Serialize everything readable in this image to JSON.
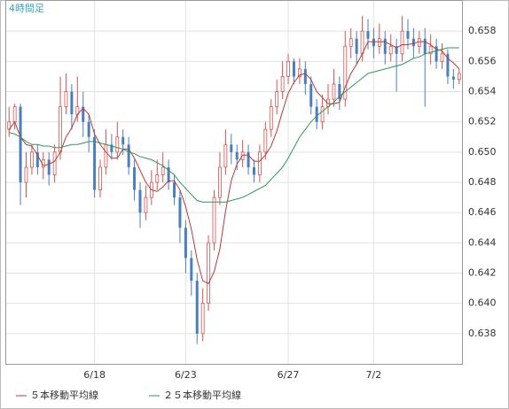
{
  "chart_data": {
    "type": "candlestick",
    "title": "4時間足",
    "categories": [
      null,
      null,
      null,
      null,
      null,
      null,
      null,
      null,
      null,
      null,
      null,
      null,
      null,
      null,
      null,
      "6/18",
      null,
      null,
      null,
      null,
      null,
      null,
      null,
      null,
      null,
      null,
      null,
      null,
      null,
      null,
      null,
      "6/23",
      null,
      null,
      null,
      null,
      null,
      null,
      null,
      null,
      null,
      null,
      null,
      null,
      null,
      null,
      null,
      null,
      null,
      "6/27",
      null,
      null,
      null,
      null,
      null,
      null,
      null,
      null,
      null,
      null,
      null,
      null,
      null,
      null,
      "7/2",
      null,
      null,
      null,
      null,
      null,
      null,
      null,
      null,
      null,
      null,
      null,
      null,
      null,
      null,
      null
    ],
    "open": [
      0.6515,
      0.652,
      0.653,
      0.648,
      0.649,
      0.65,
      0.649,
      0.6495,
      0.6485,
      0.65,
      0.653,
      0.654,
      0.6525,
      0.653,
      0.652,
      0.651,
      0.6475,
      0.649,
      0.6505,
      0.65,
      0.651,
      0.6505,
      0.649,
      0.6475,
      0.646,
      0.647,
      0.648,
      0.6485,
      0.649,
      0.648,
      0.647,
      0.645,
      0.643,
      0.6415,
      0.638,
      0.64,
      0.644,
      0.647,
      0.649,
      0.6505,
      0.65,
      0.6495,
      0.65,
      0.649,
      0.6485,
      0.65,
      0.6515,
      0.653,
      0.654,
      0.655,
      0.656,
      0.655,
      0.6555,
      0.6545,
      0.653,
      0.652,
      0.653,
      0.6535,
      0.6545,
      0.6535,
      0.657,
      0.6575,
      0.6565,
      0.658,
      0.6575,
      0.657,
      0.6575,
      0.6565,
      0.657,
      0.6565,
      0.658,
      0.6575,
      0.657,
      0.6575,
      0.6565,
      0.657,
      0.656,
      0.6565,
      0.655,
      0.6548
    ],
    "high": [
      0.653,
      0.6532,
      0.6532,
      0.65,
      0.6505,
      0.6505,
      0.65,
      0.65,
      0.6505,
      0.655,
      0.6552,
      0.6545,
      0.655,
      0.654,
      0.6525,
      0.6515,
      0.6495,
      0.6515,
      0.6512,
      0.652,
      0.6515,
      0.651,
      0.6495,
      0.648,
      0.6478,
      0.6488,
      0.6495,
      0.65,
      0.6495,
      0.6485,
      0.6475,
      0.6455,
      0.6435,
      0.642,
      0.641,
      0.6445,
      0.6475,
      0.65,
      0.6515,
      0.6512,
      0.6505,
      0.6508,
      0.6505,
      0.6495,
      0.6505,
      0.652,
      0.6535,
      0.6548,
      0.656,
      0.6565,
      0.6562,
      0.6562,
      0.656,
      0.655,
      0.6535,
      0.6538,
      0.6545,
      0.6555,
      0.655,
      0.658,
      0.6582,
      0.658,
      0.659,
      0.6588,
      0.6582,
      0.6585,
      0.658,
      0.6578,
      0.6575,
      0.659,
      0.6588,
      0.6582,
      0.658,
      0.6582,
      0.6578,
      0.6575,
      0.6572,
      0.6568,
      0.6555,
      0.6555
    ],
    "low": [
      0.651,
      0.6515,
      0.6465,
      0.647,
      0.6485,
      0.6485,
      0.6482,
      0.6478,
      0.648,
      0.6495,
      0.6525,
      0.6515,
      0.652,
      0.651,
      0.65,
      0.647,
      0.647,
      0.6485,
      0.6495,
      0.6495,
      0.6498,
      0.6485,
      0.6468,
      0.645,
      0.6455,
      0.6465,
      0.6475,
      0.648,
      0.6475,
      0.6465,
      0.644,
      0.642,
      0.6405,
      0.6373,
      0.6375,
      0.6395,
      0.6435,
      0.6465,
      0.6485,
      0.6492,
      0.6488,
      0.649,
      0.6485,
      0.648,
      0.648,
      0.6495,
      0.651,
      0.6525,
      0.6535,
      0.6545,
      0.6545,
      0.6545,
      0.6538,
      0.6525,
      0.6515,
      0.6515,
      0.6525,
      0.653,
      0.6528,
      0.653,
      0.6562,
      0.6558,
      0.656,
      0.6568,
      0.6562,
      0.6565,
      0.6558,
      0.656,
      0.654,
      0.656,
      0.6568,
      0.6562,
      0.6565,
      0.653,
      0.6558,
      0.6555,
      0.6555,
      0.6545,
      0.6542,
      0.6545
    ],
    "close": [
      0.652,
      0.653,
      0.648,
      0.649,
      0.65,
      0.649,
      0.6495,
      0.6485,
      0.65,
      0.653,
      0.654,
      0.6525,
      0.653,
      0.652,
      0.651,
      0.6475,
      0.649,
      0.6505,
      0.65,
      0.651,
      0.6505,
      0.649,
      0.6475,
      0.646,
      0.647,
      0.648,
      0.6485,
      0.649,
      0.648,
      0.647,
      0.645,
      0.643,
      0.6415,
      0.638,
      0.64,
      0.644,
      0.647,
      0.649,
      0.6505,
      0.65,
      0.6495,
      0.65,
      0.649,
      0.6485,
      0.65,
      0.6515,
      0.653,
      0.654,
      0.655,
      0.656,
      0.655,
      0.6555,
      0.6545,
      0.653,
      0.652,
      0.653,
      0.6535,
      0.6545,
      0.6535,
      0.657,
      0.6575,
      0.6565,
      0.658,
      0.6575,
      0.657,
      0.6575,
      0.6565,
      0.657,
      0.6565,
      0.658,
      0.6575,
      0.657,
      0.6575,
      0.6565,
      0.657,
      0.656,
      0.6565,
      0.655,
      0.6548,
      0.6552
    ],
    "up_color": "#d9534f",
    "down_color": "#4a7fbf",
    "series": [
      {
        "name": "５本移動平均線",
        "color": "#b83a3a",
        "values": [
          0.6515,
          0.652,
          0.651,
          0.6505,
          0.6504,
          0.6498,
          0.6491,
          0.6492,
          0.6494,
          0.65,
          0.651,
          0.6516,
          0.6525,
          0.6529,
          0.6525,
          0.6512,
          0.6505,
          0.65,
          0.6496,
          0.6496,
          0.6502,
          0.6502,
          0.6496,
          0.6488,
          0.648,
          0.6475,
          0.6474,
          0.6477,
          0.6481,
          0.6481,
          0.6475,
          0.6464,
          0.6449,
          0.6429,
          0.6415,
          0.6413,
          0.6421,
          0.6436,
          0.6461,
          0.6481,
          0.6492,
          0.6498,
          0.6498,
          0.6494,
          0.6494,
          0.6498,
          0.6504,
          0.6514,
          0.6527,
          0.6539,
          0.6546,
          0.6551,
          0.6552,
          0.6548,
          0.654,
          0.6536,
          0.6532,
          0.6532,
          0.6533,
          0.6543,
          0.6552,
          0.6558,
          0.6565,
          0.6573,
          0.6573,
          0.6573,
          0.6573,
          0.6571,
          0.6569,
          0.6571,
          0.6571,
          0.6572,
          0.6573,
          0.6573,
          0.6571,
          0.6568,
          0.6567,
          0.6562,
          0.6559,
          0.6555
        ]
      },
      {
        "name": "２５本移動平均線",
        "color": "#2a9a5a",
        "values": [
          0.6513,
          0.6512,
          0.651,
          0.6507,
          0.6505,
          0.6505,
          0.6504,
          0.6504,
          0.6503,
          0.6503,
          0.6504,
          0.6505,
          0.6505,
          0.6506,
          0.6507,
          0.6507,
          0.6506,
          0.6505,
          0.6504,
          0.6503,
          0.6502,
          0.65,
          0.6499,
          0.6497,
          0.6496,
          0.6495,
          0.6493,
          0.6491,
          0.6488,
          0.6485,
          0.648,
          0.6476,
          0.6472,
          0.6468,
          0.6467,
          0.6467,
          0.6467,
          0.6467,
          0.6467,
          0.6468,
          0.6469,
          0.647,
          0.6472,
          0.6474,
          0.6476,
          0.6478,
          0.6482,
          0.6486,
          0.649,
          0.6496,
          0.6503,
          0.651,
          0.6515,
          0.652,
          0.6524,
          0.6527,
          0.653,
          0.6533,
          0.6537,
          0.654,
          0.6543,
          0.6546,
          0.6549,
          0.6552,
          0.6553,
          0.6554,
          0.6555,
          0.6556,
          0.6557,
          0.6558,
          0.656,
          0.6562,
          0.6563,
          0.6565,
          0.6566,
          0.6567,
          0.6568,
          0.6569,
          0.6569,
          0.6569
        ]
      }
    ],
    "ylim": [
      0.636,
      0.66
    ],
    "yticks": [
      0.638,
      {
        "value": 0.64,
        "label": "0.640"
      },
      0.642,
      0.644,
      0.646,
      0.648,
      {
        "value": 0.65,
        "label": "0.650"
      },
      0.652,
      0.654,
      0.656,
      0.658
    ],
    "grid": true
  }
}
